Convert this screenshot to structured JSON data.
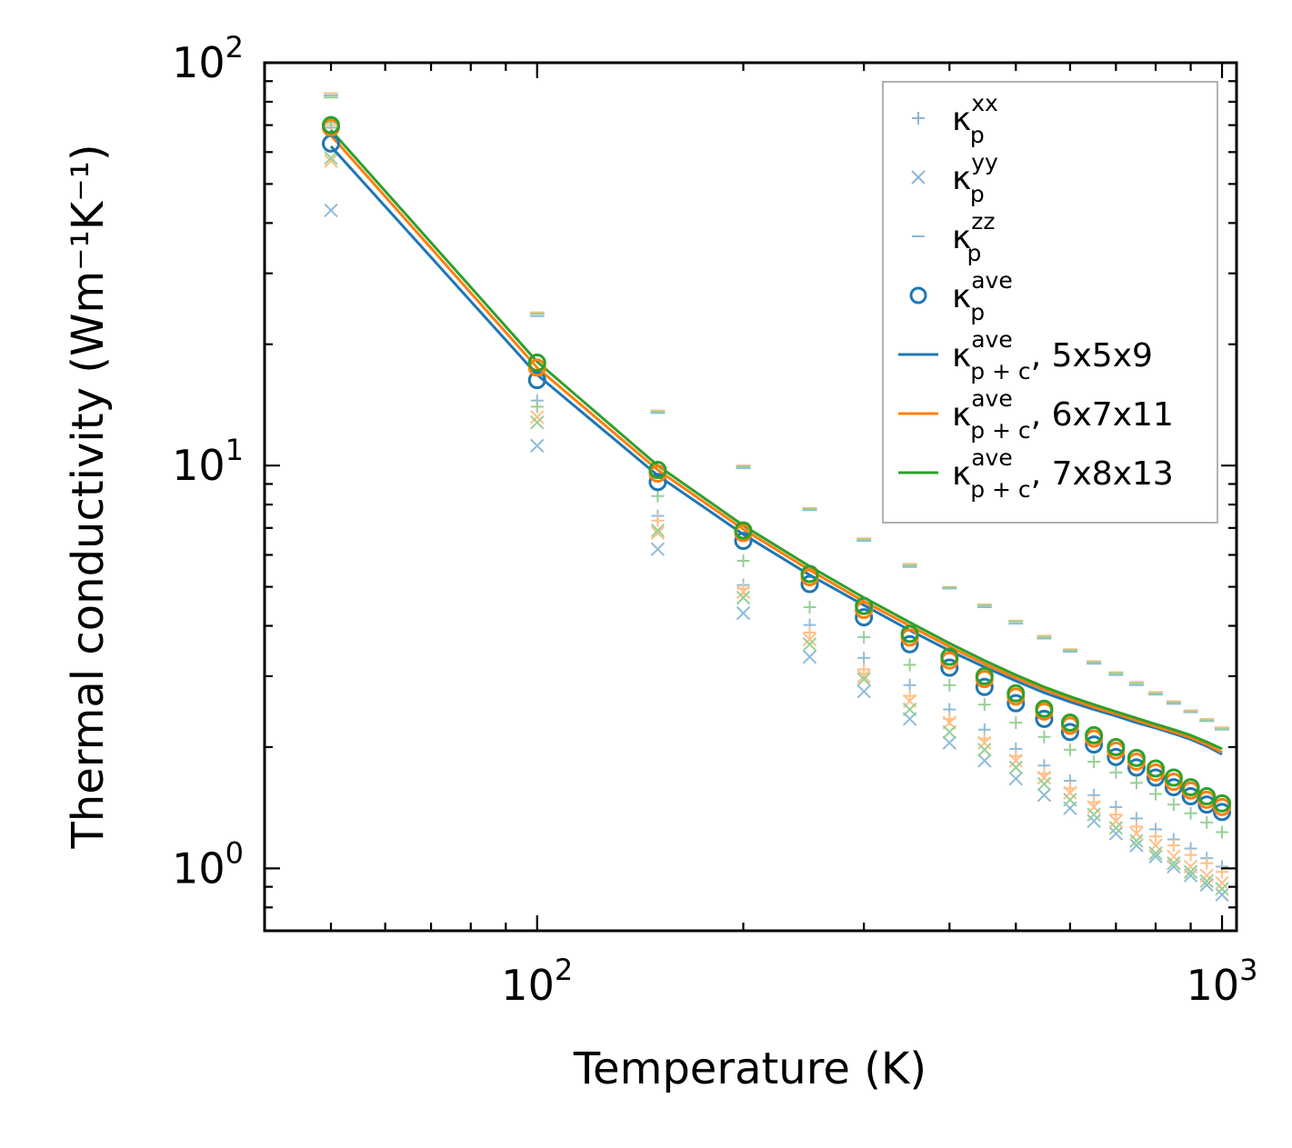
{
  "chart_data": {
    "type": "scatter",
    "xscale": "log",
    "yscale": "log",
    "xlim": [
      40,
      1050
    ],
    "ylim": [
      0.7,
      100
    ],
    "xlabel": "Temperature (K)",
    "ylabel": "Thermal conductivity (Wm⁻¹K⁻¹)",
    "x_ticks": [
      {
        "base": "10",
        "exp": "2",
        "value": 100
      },
      {
        "base": "10",
        "exp": "3",
        "value": 1000
      }
    ],
    "y_ticks": [
      {
        "base": "10",
        "exp": "0",
        "value": 1
      },
      {
        "base": "10",
        "exp": "1",
        "value": 10
      },
      {
        "base": "10",
        "exp": "2",
        "value": 100
      }
    ],
    "temperatures": [
      50,
      100,
      150,
      200,
      250,
      300,
      350,
      400,
      450,
      500,
      550,
      600,
      650,
      700,
      750,
      800,
      850,
      900,
      950,
      1000
    ],
    "meshes": [
      {
        "name": "5x5x9",
        "color": "#1f77b4",
        "kxx": [
          69,
          14.5,
          7.5,
          5.05,
          4.02,
          3.33,
          2.85,
          2.48,
          2.21,
          1.98,
          1.8,
          1.65,
          1.52,
          1.42,
          1.33,
          1.25,
          1.18,
          1.12,
          1.06,
          1.01
        ],
        "kyy": [
          43,
          11.2,
          6.2,
          4.3,
          3.35,
          2.75,
          2.35,
          2.05,
          1.85,
          1.67,
          1.52,
          1.41,
          1.31,
          1.22,
          1.14,
          1.07,
          1.01,
          0.96,
          0.91,
          0.86
        ],
        "kzz": [
          83,
          23.5,
          13.5,
          9.85,
          7.75,
          6.5,
          5.6,
          4.95,
          4.45,
          4.05,
          3.72,
          3.45,
          3.22,
          3.02,
          2.85,
          2.7,
          2.56,
          2.44,
          2.32,
          2.21
        ],
        "kave": [
          63,
          16.3,
          9.1,
          6.5,
          5.08,
          4.2,
          3.6,
          3.15,
          2.82,
          2.57,
          2.35,
          2.18,
          2.03,
          1.89,
          1.78,
          1.68,
          1.59,
          1.51,
          1.44,
          1.38
        ],
        "kpc": [
          62,
          16.8,
          9.45,
          6.75,
          5.35,
          4.5,
          3.9,
          3.47,
          3.16,
          2.92,
          2.73,
          2.59,
          2.48,
          2.39,
          2.3,
          2.23,
          2.16,
          2.09,
          2.01,
          1.92
        ]
      },
      {
        "name": "6x7x11",
        "color": "#ff7f0e",
        "kxx": [
          70,
          14,
          7.3,
          4.95,
          3.85,
          3.12,
          2.68,
          2.35,
          2.1,
          1.9,
          1.72,
          1.58,
          1.46,
          1.36,
          1.27,
          1.2,
          1.14,
          1.08,
          1.03,
          0.98
        ],
        "kyy": [
          57,
          13.2,
          6.8,
          4.85,
          3.7,
          3.0,
          2.6,
          2.3,
          2.05,
          1.85,
          1.68,
          1.54,
          1.42,
          1.31,
          1.22,
          1.14,
          1.07,
          1.01,
          0.96,
          0.92
        ],
        "kzz": [
          84,
          24,
          13.7,
          10.0,
          7.85,
          6.6,
          5.7,
          5.0,
          4.52,
          4.12,
          3.78,
          3.5,
          3.27,
          3.07,
          2.9,
          2.74,
          2.6,
          2.47,
          2.35,
          2.24
        ],
        "kave": [
          69,
          17.5,
          9.55,
          6.8,
          5.28,
          4.38,
          3.74,
          3.28,
          2.95,
          2.67,
          2.45,
          2.26,
          2.1,
          1.96,
          1.84,
          1.73,
          1.64,
          1.56,
          1.48,
          1.42
        ],
        "kpc": [
          66,
          17.5,
          9.75,
          6.95,
          5.5,
          4.6,
          4.0,
          3.55,
          3.22,
          2.97,
          2.78,
          2.63,
          2.51,
          2.42,
          2.33,
          2.25,
          2.18,
          2.11,
          2.03,
          1.94
        ]
      },
      {
        "name": "7x8x13",
        "color": "#2ca02c",
        "kxx": [
          71,
          14,
          8.4,
          5.8,
          4.45,
          3.75,
          3.2,
          2.85,
          2.55,
          2.3,
          2.12,
          1.97,
          1.84,
          1.73,
          1.63,
          1.53,
          1.44,
          1.37,
          1.3,
          1.23
        ],
        "kyy": [
          58,
          12.8,
          6.9,
          4.7,
          3.6,
          2.95,
          2.48,
          2.18,
          1.97,
          1.78,
          1.62,
          1.48,
          1.36,
          1.26,
          1.17,
          1.09,
          1.03,
          0.98,
          0.93,
          0.89
        ],
        "kzz": [
          82,
          23.8,
          13.6,
          9.95,
          7.8,
          6.55,
          5.65,
          4.98,
          4.5,
          4.1,
          3.75,
          3.48,
          3.25,
          3.05,
          2.88,
          2.72,
          2.58,
          2.45,
          2.33,
          2.22
        ],
        "kave": [
          70,
          18,
          9.75,
          6.9,
          5.38,
          4.48,
          3.82,
          3.35,
          3.0,
          2.72,
          2.49,
          2.3,
          2.14,
          2.0,
          1.88,
          1.77,
          1.68,
          1.59,
          1.51,
          1.45
        ],
        "kpc": [
          68,
          18.1,
          10.0,
          7.1,
          5.62,
          4.7,
          4.08,
          3.62,
          3.28,
          3.02,
          2.82,
          2.67,
          2.55,
          2.45,
          2.36,
          2.28,
          2.21,
          2.14,
          2.06,
          1.98
        ]
      }
    ],
    "legend": {
      "position": "upper-right",
      "entries": [
        {
          "marker": "plus",
          "color": "#8fb5d8",
          "sym": "κ",
          "sub": "p",
          "sup": "xx",
          "suffix": ""
        },
        {
          "marker": "x",
          "color": "#8fb5d8",
          "sym": "κ",
          "sub": "p",
          "sup": "yy",
          "suffix": ""
        },
        {
          "marker": "dash",
          "color": "#8fb5d8",
          "sym": "κ",
          "sub": "p",
          "sup": "zz",
          "suffix": ""
        },
        {
          "marker": "circle",
          "color": "#1f77b4",
          "sym": "κ",
          "sub": "p",
          "sup": "ave",
          "suffix": ""
        },
        {
          "marker": "line",
          "color": "#1f77b4",
          "sym": "κ",
          "sub": "p + c",
          "sup": "ave",
          "suffix": ", 5x5x9"
        },
        {
          "marker": "line",
          "color": "#ff7f0e",
          "sym": "κ",
          "sub": "p + c",
          "sup": "ave",
          "suffix": ", 6x7x11"
        },
        {
          "marker": "line",
          "color": "#2ca02c",
          "sym": "κ",
          "sub": "p + c",
          "sup": "ave",
          "suffix": ", 7x8x13"
        }
      ]
    }
  }
}
